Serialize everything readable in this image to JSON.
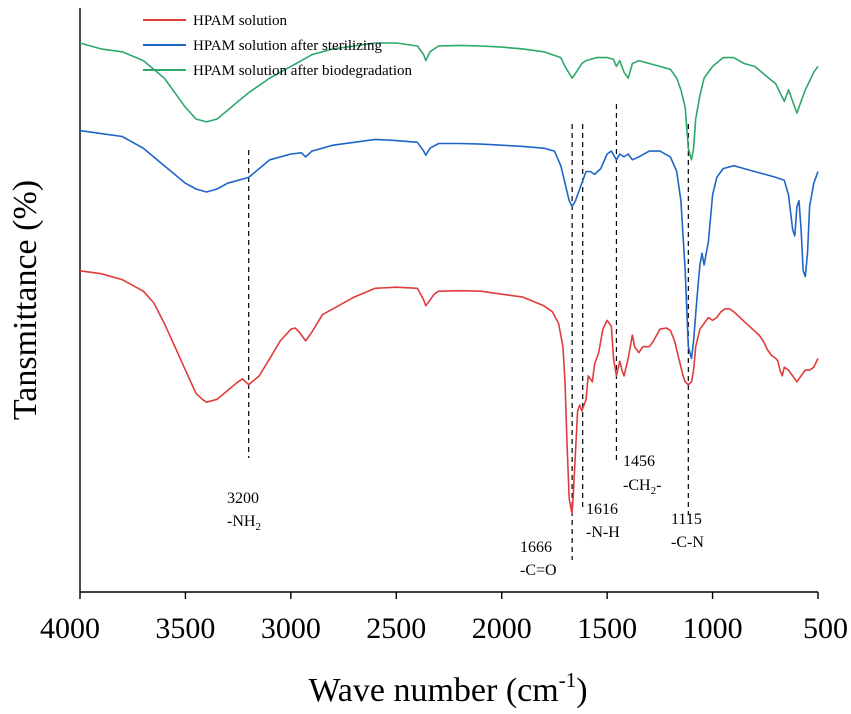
{
  "chart_data": {
    "type": "line",
    "xlabel": "Wave number (cm",
    "xlabel_sup": "-1",
    "xlabel_close": ")",
    "ylabel": "Tansmittance (%)",
    "xlim": [
      4000,
      500
    ],
    "x_ticks": [
      4000,
      3500,
      3000,
      2500,
      2000,
      1500,
      1000,
      500
    ],
    "x_tick_labels": [
      "4000",
      "3500",
      "3000",
      "2500",
      "2000",
      "1500",
      "1000",
      "500"
    ],
    "y_units": "arbitrary (curves offset vertically)",
    "legend": [
      {
        "label": "HPAM solution",
        "color": "#e03c3c"
      },
      {
        "label": "HPAM solution after sterilizing",
        "color": "#1f66c7"
      },
      {
        "label": "HPAM solution after biodegradation",
        "color": "#2ea86a"
      }
    ],
    "series": [
      {
        "name": "HPAM solution after biodegradation",
        "color": "#2ea86a",
        "points": [
          [
            4000,
            94
          ],
          [
            3900,
            93
          ],
          [
            3800,
            92.5
          ],
          [
            3700,
            91
          ],
          [
            3600,
            88
          ],
          [
            3500,
            83
          ],
          [
            3450,
            81
          ],
          [
            3400,
            80.5
          ],
          [
            3350,
            81
          ],
          [
            3300,
            82.5
          ],
          [
            3250,
            84
          ],
          [
            3200,
            85.5
          ],
          [
            3100,
            88
          ],
          [
            3000,
            90
          ],
          [
            2900,
            92
          ],
          [
            2800,
            93
          ],
          [
            2700,
            93.5
          ],
          [
            2600,
            94
          ],
          [
            2500,
            94
          ],
          [
            2400,
            93.5
          ],
          [
            2370,
            92
          ],
          [
            2360,
            91
          ],
          [
            2340,
            92.5
          ],
          [
            2300,
            93.5
          ],
          [
            2200,
            93.6
          ],
          [
            2100,
            93.5
          ],
          [
            2000,
            93.3
          ],
          [
            1900,
            93
          ],
          [
            1800,
            92.5
          ],
          [
            1720,
            91.5
          ],
          [
            1700,
            90
          ],
          [
            1680,
            88.8
          ],
          [
            1666,
            88
          ],
          [
            1650,
            88.8
          ],
          [
            1620,
            90.5
          ],
          [
            1600,
            91
          ],
          [
            1550,
            91.5
          ],
          [
            1500,
            91.5
          ],
          [
            1470,
            91.2
          ],
          [
            1456,
            90
          ],
          [
            1440,
            91
          ],
          [
            1420,
            89
          ],
          [
            1400,
            88
          ],
          [
            1380,
            90.5
          ],
          [
            1350,
            91
          ],
          [
            1300,
            90.5
          ],
          [
            1250,
            90
          ],
          [
            1200,
            89.5
          ],
          [
            1170,
            88
          ],
          [
            1150,
            86
          ],
          [
            1130,
            83
          ],
          [
            1115,
            76
          ],
          [
            1100,
            74
          ],
          [
            1090,
            76
          ],
          [
            1080,
            81
          ],
          [
            1060,
            85
          ],
          [
            1040,
            88
          ],
          [
            1000,
            90
          ],
          [
            950,
            91.5
          ],
          [
            900,
            91.5
          ],
          [
            850,
            90.5
          ],
          [
            800,
            90
          ],
          [
            750,
            88.5
          ],
          [
            700,
            87
          ],
          [
            680,
            85.5
          ],
          [
            660,
            84
          ],
          [
            640,
            86
          ],
          [
            620,
            84
          ],
          [
            600,
            82
          ],
          [
            580,
            84
          ],
          [
            560,
            86
          ],
          [
            540,
            87.5
          ],
          [
            520,
            89
          ],
          [
            500,
            90
          ]
        ]
      },
      {
        "name": "HPAM solution after sterilizing",
        "color": "#1f66c7",
        "points": [
          [
            4000,
            79
          ],
          [
            3900,
            78.5
          ],
          [
            3800,
            78
          ],
          [
            3700,
            76
          ],
          [
            3600,
            73
          ],
          [
            3500,
            70
          ],
          [
            3450,
            69
          ],
          [
            3400,
            68.5
          ],
          [
            3350,
            69
          ],
          [
            3300,
            70
          ],
          [
            3250,
            70.5
          ],
          [
            3200,
            71
          ],
          [
            3150,
            72.5
          ],
          [
            3100,
            74
          ],
          [
            3000,
            75
          ],
          [
            2950,
            75.2
          ],
          [
            2930,
            74.5
          ],
          [
            2900,
            75.5
          ],
          [
            2800,
            76.5
          ],
          [
            2700,
            77
          ],
          [
            2600,
            77.5
          ],
          [
            2500,
            77.3
          ],
          [
            2400,
            77
          ],
          [
            2370,
            75.5
          ],
          [
            2360,
            74.8
          ],
          [
            2340,
            76
          ],
          [
            2300,
            76.8
          ],
          [
            2200,
            76.8
          ],
          [
            2100,
            76.7
          ],
          [
            2000,
            76.5
          ],
          [
            1900,
            76.3
          ],
          [
            1800,
            76
          ],
          [
            1750,
            75.5
          ],
          [
            1720,
            73
          ],
          [
            1700,
            70
          ],
          [
            1680,
            67
          ],
          [
            1666,
            66
          ],
          [
            1650,
            67
          ],
          [
            1630,
            69
          ],
          [
            1610,
            71
          ],
          [
            1600,
            72
          ],
          [
            1580,
            72
          ],
          [
            1560,
            71.5
          ],
          [
            1530,
            72.5
          ],
          [
            1500,
            75
          ],
          [
            1480,
            75.5
          ],
          [
            1456,
            74
          ],
          [
            1440,
            75
          ],
          [
            1420,
            74.5
          ],
          [
            1400,
            75
          ],
          [
            1380,
            74
          ],
          [
            1350,
            74.5
          ],
          [
            1300,
            75.5
          ],
          [
            1250,
            75.5
          ],
          [
            1200,
            74.5
          ],
          [
            1170,
            72
          ],
          [
            1150,
            67
          ],
          [
            1130,
            55
          ],
          [
            1115,
            42
          ],
          [
            1100,
            40
          ],
          [
            1090,
            43
          ],
          [
            1075,
            50
          ],
          [
            1060,
            56
          ],
          [
            1050,
            58
          ],
          [
            1040,
            56
          ],
          [
            1020,
            60
          ],
          [
            1000,
            68
          ],
          [
            980,
            71
          ],
          [
            950,
            72.5
          ],
          [
            900,
            73
          ],
          [
            850,
            72.5
          ],
          [
            800,
            72
          ],
          [
            750,
            71.5
          ],
          [
            700,
            71
          ],
          [
            660,
            70.5
          ],
          [
            640,
            68
          ],
          [
            620,
            62
          ],
          [
            610,
            61
          ],
          [
            600,
            66
          ],
          [
            590,
            67
          ],
          [
            580,
            62
          ],
          [
            570,
            55
          ],
          [
            560,
            54
          ],
          [
            550,
            58
          ],
          [
            540,
            66
          ],
          [
            520,
            70
          ],
          [
            500,
            72
          ]
        ]
      },
      {
        "name": "HPAM solution",
        "color": "#e03c3c",
        "points": [
          [
            4000,
            55
          ],
          [
            3900,
            54.5
          ],
          [
            3800,
            53.5
          ],
          [
            3700,
            51.5
          ],
          [
            3650,
            49.5
          ],
          [
            3600,
            46
          ],
          [
            3550,
            42
          ],
          [
            3500,
            38
          ],
          [
            3450,
            34
          ],
          [
            3420,
            33
          ],
          [
            3400,
            32.5
          ],
          [
            3350,
            33
          ],
          [
            3300,
            34.5
          ],
          [
            3250,
            36
          ],
          [
            3230,
            36.5
          ],
          [
            3200,
            35.5
          ],
          [
            3150,
            37
          ],
          [
            3100,
            40
          ],
          [
            3050,
            43
          ],
          [
            3000,
            45
          ],
          [
            2980,
            45.2
          ],
          [
            2960,
            44.5
          ],
          [
            2930,
            43
          ],
          [
            2900,
            44.5
          ],
          [
            2850,
            47.5
          ],
          [
            2800,
            48.5
          ],
          [
            2700,
            50.5
          ],
          [
            2600,
            52
          ],
          [
            2500,
            52.2
          ],
          [
            2400,
            52
          ],
          [
            2370,
            50
          ],
          [
            2360,
            49
          ],
          [
            2340,
            50
          ],
          [
            2320,
            51
          ],
          [
            2300,
            51.5
          ],
          [
            2200,
            51.6
          ],
          [
            2100,
            51.5
          ],
          [
            2000,
            51
          ],
          [
            1900,
            50.5
          ],
          [
            1800,
            49
          ],
          [
            1760,
            48
          ],
          [
            1730,
            46
          ],
          [
            1710,
            42
          ],
          [
            1700,
            36
          ],
          [
            1690,
            25
          ],
          [
            1680,
            16
          ],
          [
            1670,
            14
          ],
          [
            1666,
            13.5
          ],
          [
            1660,
            17
          ],
          [
            1650,
            24
          ],
          [
            1640,
            31
          ],
          [
            1630,
            32
          ],
          [
            1620,
            31
          ],
          [
            1600,
            33
          ],
          [
            1590,
            37
          ],
          [
            1570,
            36
          ],
          [
            1560,
            39
          ],
          [
            1540,
            41
          ],
          [
            1520,
            45
          ],
          [
            1500,
            46.5
          ],
          [
            1480,
            45.5
          ],
          [
            1470,
            40
          ],
          [
            1456,
            37
          ],
          [
            1450,
            38
          ],
          [
            1440,
            39.5
          ],
          [
            1430,
            38
          ],
          [
            1420,
            37
          ],
          [
            1400,
            40
          ],
          [
            1380,
            44
          ],
          [
            1370,
            42
          ],
          [
            1350,
            41
          ],
          [
            1330,
            42
          ],
          [
            1300,
            42
          ],
          [
            1280,
            43
          ],
          [
            1250,
            45
          ],
          [
            1220,
            45.2
          ],
          [
            1200,
            44.8
          ],
          [
            1180,
            43
          ],
          [
            1160,
            40
          ],
          [
            1140,
            37
          ],
          [
            1130,
            36
          ],
          [
            1115,
            35.5
          ],
          [
            1100,
            36
          ],
          [
            1090,
            38
          ],
          [
            1080,
            42
          ],
          [
            1060,
            45
          ],
          [
            1040,
            46
          ],
          [
            1020,
            47
          ],
          [
            1000,
            46.5
          ],
          [
            980,
            47
          ],
          [
            960,
            48
          ],
          [
            940,
            48.5
          ],
          [
            920,
            48.5
          ],
          [
            900,
            48
          ],
          [
            870,
            47
          ],
          [
            840,
            46
          ],
          [
            810,
            45
          ],
          [
            780,
            44
          ],
          [
            760,
            43
          ],
          [
            740,
            41.5
          ],
          [
            720,
            40.5
          ],
          [
            700,
            40
          ],
          [
            690,
            39.5
          ],
          [
            680,
            38
          ],
          [
            670,
            37
          ],
          [
            660,
            38.5
          ],
          [
            640,
            38
          ],
          [
            620,
            37
          ],
          [
            600,
            36
          ],
          [
            580,
            37
          ],
          [
            560,
            38
          ],
          [
            540,
            38
          ],
          [
            520,
            38.5
          ],
          [
            500,
            40
          ]
        ]
      }
    ],
    "annotations": [
      {
        "x": 3200,
        "label": "3200",
        "group": "-NH",
        "sub": "2"
      },
      {
        "x": 1666,
        "label": "1666",
        "group": "-C=O"
      },
      {
        "x": 1616,
        "label": "1616",
        "group": "-N-H"
      },
      {
        "x": 1456,
        "label": "1456",
        "group": "-CH",
        "sub": "2",
        "suffix": "-"
      },
      {
        "x": 1115,
        "label": "1115",
        "group": "-C-N"
      }
    ]
  }
}
